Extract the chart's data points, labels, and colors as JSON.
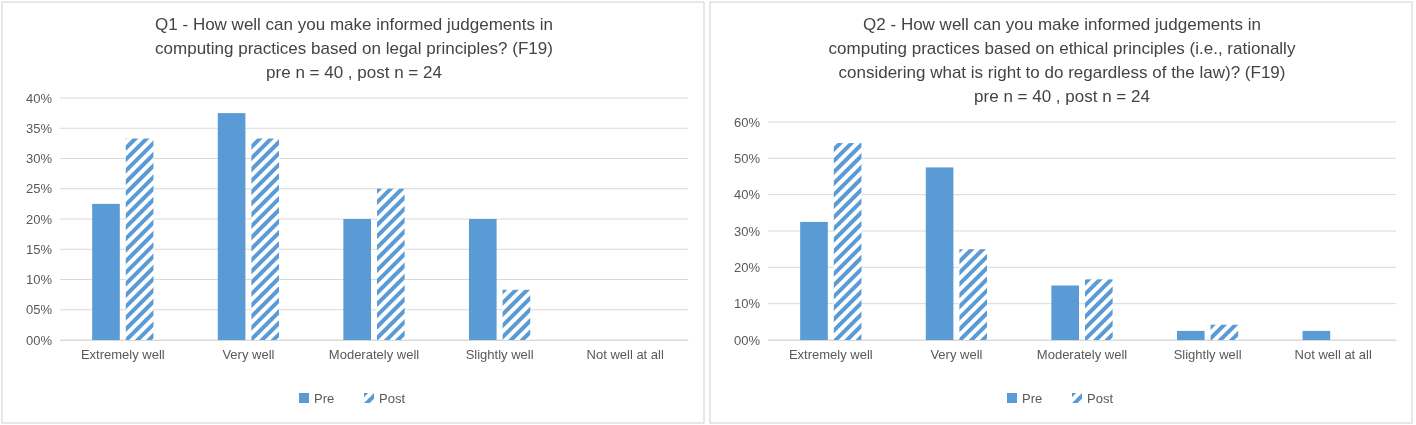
{
  "chart_data": [
    {
      "type": "bar",
      "title": "Q1 - How well can you make informed judgements in computing practices based on legal principles? (F19)",
      "subtitle": "pre n = 40 , post n = 24",
      "categories": [
        "Extremely well",
        "Very well",
        "Moderately well",
        "Slightly well",
        "Not well at all"
      ],
      "series": [
        {
          "name": "Pre",
          "color": "#5b9bd5",
          "values": [
            22.5,
            37.5,
            20,
            20,
            0
          ]
        },
        {
          "name": "Post",
          "color": "#5b9bd5",
          "values": [
            33.3,
            33.3,
            25,
            8.3,
            0
          ]
        }
      ],
      "ylim": [
        0,
        40
      ],
      "yticks": [
        {
          "value": 0,
          "label": "00%"
        },
        {
          "value": 5,
          "label": "05%"
        },
        {
          "value": 10,
          "label": "10%"
        },
        {
          "value": 15,
          "label": "15%"
        },
        {
          "value": 20,
          "label": "20%"
        },
        {
          "value": 25,
          "label": "25%"
        },
        {
          "value": 30,
          "label": "30%"
        },
        {
          "value": 35,
          "label": "35%"
        },
        {
          "value": 40,
          "label": "40%"
        }
      ],
      "grid": "y",
      "legend": "bottom"
    },
    {
      "type": "bar",
      "title": "Q2 - How well can you make informed judgements in computing practices based on ethical principles (i.e., rationally considering what is right to do regardless of the law)? (F19)",
      "subtitle": "pre n = 40 , post n = 24",
      "categories": [
        "Extremely well",
        "Very well",
        "Moderately well",
        "Slightly well",
        "Not well at all"
      ],
      "series": [
        {
          "name": "Pre",
          "color": "#5b9bd5",
          "values": [
            32.5,
            47.5,
            15,
            2.5,
            2.5
          ]
        },
        {
          "name": "Post",
          "color": "#5b9bd5",
          "values": [
            54.2,
            25,
            16.7,
            4.2,
            0
          ]
        }
      ],
      "ylim": [
        0,
        60
      ],
      "yticks": [
        {
          "value": 0,
          "label": "00%"
        },
        {
          "value": 10,
          "label": "10%"
        },
        {
          "value": 20,
          "label": "20%"
        },
        {
          "value": 30,
          "label": "30%"
        },
        {
          "value": 40,
          "label": "40%"
        },
        {
          "value": 50,
          "label": "50%"
        },
        {
          "value": 60,
          "label": "60%"
        }
      ],
      "grid": "y",
      "legend": "bottom"
    }
  ]
}
